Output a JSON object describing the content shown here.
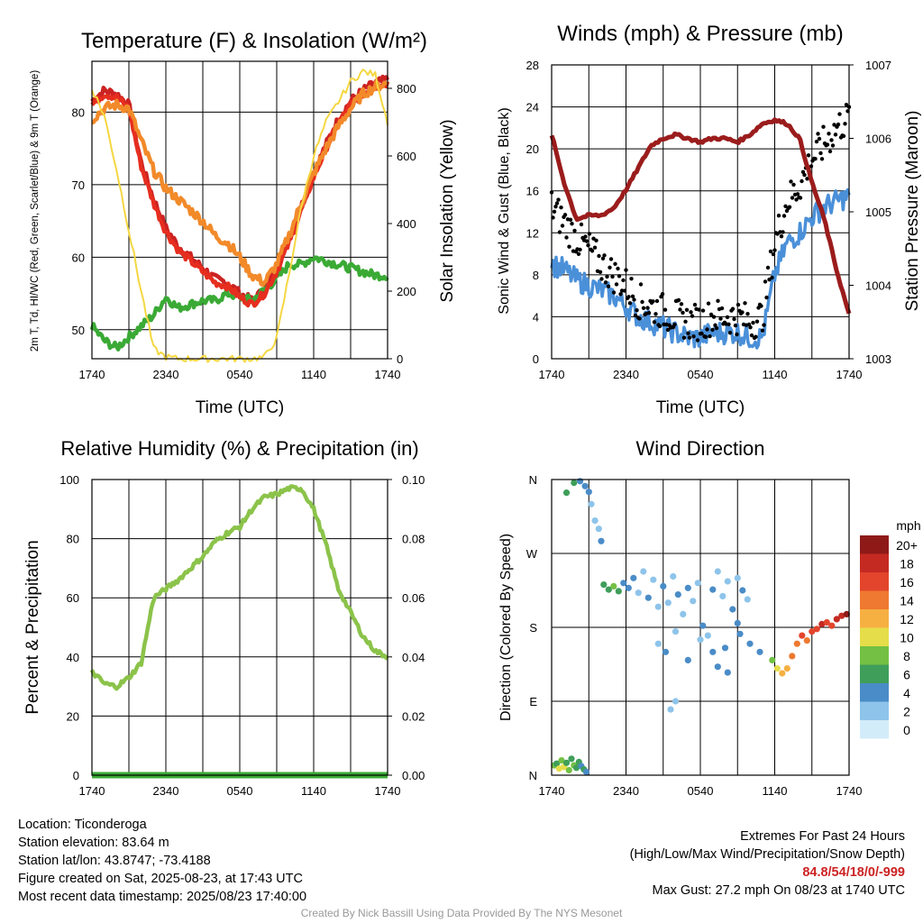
{
  "chart_data": [
    {
      "type": "line",
      "title": "Temperature (F) & Insolation (W/m²)",
      "xlabel": "Time (UTC)",
      "ylabel_left": "2m T, Td, HI/WC (Red, Green, Scarlet/Blue) & 9m T (Orange)",
      "ylabel_right": "Solar Insolation (Yellow)",
      "x_ticks": [
        "1740",
        "2340",
        "0540",
        "1140",
        "1740"
      ],
      "ylim": [
        46,
        87
      ],
      "y_ticks": [
        50,
        60,
        70,
        80
      ],
      "y2lim": [
        0,
        880
      ],
      "y2_ticks": [
        0,
        200,
        400,
        600,
        800
      ],
      "x_hours": [
        0,
        1,
        2,
        3,
        4,
        5,
        6,
        7,
        8,
        9,
        10,
        11,
        12,
        13,
        14,
        15,
        16,
        17,
        18,
        19,
        20,
        21,
        22,
        23,
        24
      ],
      "series": [
        {
          "name": "2m T",
          "color": "#cc2222",
          "values": [
            81.5,
            83.0,
            82.5,
            81.0,
            73.0,
            68.0,
            64.0,
            61.5,
            60.0,
            58.5,
            57.0,
            56.5,
            55.0,
            54.0,
            55.5,
            58.5,
            62.5,
            67.0,
            71.5,
            75.5,
            79.0,
            81.5,
            83.0,
            84.0,
            84.5
          ]
        },
        {
          "name": "2m Td",
          "color": "#3aaa35",
          "values": [
            50.5,
            48.5,
            47.5,
            49.0,
            50.5,
            52.0,
            54.5,
            53.0,
            53.5,
            54.0,
            54.0,
            55.0,
            54.5,
            54.0,
            55.5,
            57.0,
            59.0,
            59.0,
            60.0,
            59.5,
            59.0,
            58.5,
            58.0,
            57.5,
            57.5
          ]
        },
        {
          "name": "HI/WC",
          "color": "#e62e1f",
          "values": [
            81.0,
            82.5,
            82.0,
            80.5,
            72.5,
            67.5,
            63.5,
            61.0,
            59.5,
            58.0,
            56.5,
            56.0,
            54.5,
            53.5,
            55.0,
            58.0,
            62.0,
            66.5,
            71.0,
            75.0,
            78.5,
            81.0,
            82.5,
            83.5,
            84.0
          ]
        },
        {
          "name": "9m T",
          "color": "#f28a2a",
          "values": [
            79.0,
            80.5,
            81.0,
            80.5,
            76.0,
            72.0,
            69.5,
            68.0,
            66.5,
            65.0,
            63.0,
            62.0,
            60.0,
            57.5,
            56.5,
            59.0,
            63.0,
            67.5,
            71.5,
            75.0,
            78.0,
            80.5,
            82.5,
            83.5,
            84.0
          ]
        },
        {
          "name": "Solar Insolation",
          "axis": "right",
          "color": "#f5d742",
          "values": [
            800,
            720,
            560,
            380,
            200,
            30,
            5,
            0,
            0,
            0,
            0,
            0,
            0,
            0,
            5,
            60,
            250,
            450,
            600,
            700,
            760,
            820,
            850,
            840,
            700
          ]
        }
      ]
    },
    {
      "type": "line",
      "title": "Winds (mph) & Pressure (mb)",
      "xlabel": "Time (UTC)",
      "ylabel_left": "Sonic Wind & Gust (Blue, Black)",
      "ylabel_right": "Station Pressure (Maroon)",
      "x_ticks": [
        "1740",
        "2340",
        "0540",
        "1140",
        "1740"
      ],
      "ylim": [
        0,
        28
      ],
      "y_ticks": [
        0,
        4,
        8,
        12,
        16,
        20,
        24,
        28
      ],
      "y2lim": [
        1003,
        1007
      ],
      "y2_ticks": [
        1003,
        1004,
        1005,
        1006,
        1007
      ],
      "x_hours": [
        0,
        1,
        2,
        3,
        4,
        5,
        6,
        7,
        8,
        9,
        10,
        11,
        12,
        13,
        14,
        15,
        16,
        17,
        18,
        19,
        20,
        21,
        22,
        23,
        24
      ],
      "series": [
        {
          "name": "Sonic Wind",
          "color": "#4a90d9",
          "values": [
            9.0,
            8.5,
            7.5,
            7.0,
            6.5,
            6.0,
            5.0,
            4.0,
            3.5,
            3.0,
            2.5,
            2.0,
            2.0,
            2.5,
            2.5,
            2.5,
            2.0,
            2.0,
            8.0,
            11.0,
            12.0,
            13.5,
            14.5,
            15.0,
            15.5
          ]
        },
        {
          "name": "Gust",
          "color": "#000000",
          "markers": true,
          "values": [
            14.5,
            13.0,
            11.5,
            10.5,
            9.0,
            8.0,
            7.0,
            5.5,
            5.0,
            4.5,
            4.0,
            3.5,
            3.5,
            4.0,
            4.0,
            4.0,
            3.5,
            4.0,
            11.0,
            15.0,
            16.5,
            19.0,
            20.5,
            22.0,
            23.0
          ]
        },
        {
          "name": "Station Pressure",
          "axis": "right",
          "color": "#9b1c1c",
          "values": [
            1006.05,
            1005.4,
            1004.9,
            1004.95,
            1004.95,
            1005.05,
            1005.3,
            1005.6,
            1005.9,
            1006.0,
            1006.05,
            1006.0,
            1005.95,
            1006.0,
            1006.0,
            1005.95,
            1006.05,
            1006.2,
            1006.25,
            1006.2,
            1006.0,
            1005.4,
            1004.9,
            1004.2,
            1003.6
          ]
        }
      ]
    },
    {
      "type": "line",
      "title": "Relative Humidity (%) & Precipitation (in)",
      "ylabel_left": "Percent & Precipitation",
      "x_ticks": [
        "1740",
        "2340",
        "0540",
        "1140",
        "1740"
      ],
      "ylim": [
        0,
        100
      ],
      "y_ticks": [
        0,
        20,
        40,
        60,
        80,
        100
      ],
      "y2lim": [
        0,
        0.1
      ],
      "y2_ticks": [
        "0.00",
        "0.02",
        "0.04",
        "0.06",
        "0.08",
        "0.10"
      ],
      "x_hours": [
        0,
        1,
        2,
        3,
        4,
        5,
        6,
        7,
        8,
        9,
        10,
        11,
        12,
        13,
        14,
        15,
        16,
        17,
        18,
        19,
        20,
        21,
        22,
        23,
        24
      ],
      "series": [
        {
          "name": "Relative Humidity",
          "color": "#8bc34a",
          "values": [
            35,
            31,
            30,
            33,
            38,
            60,
            63,
            66,
            70,
            74,
            79,
            82,
            84,
            90,
            94,
            95,
            97,
            97,
            90,
            78,
            63,
            55,
            47,
            42,
            40
          ]
        },
        {
          "name": "Precipitation",
          "axis": "right",
          "color": "#3aaa35",
          "values": [
            0,
            0,
            0,
            0,
            0,
            0,
            0,
            0,
            0,
            0,
            0,
            0,
            0,
            0,
            0,
            0,
            0,
            0,
            0,
            0,
            0,
            0,
            0,
            0,
            0
          ]
        }
      ]
    },
    {
      "type": "scatter",
      "title": "Wind Direction",
      "ylabel": "Direction (Colored By Speed)",
      "x_ticks": [
        "1740",
        "2340",
        "0540",
        "1140",
        "1740"
      ],
      "y_ticks": [
        "N",
        "E",
        "S",
        "W",
        "N"
      ],
      "ylim": [
        0,
        360
      ],
      "colorbar_title": "mph",
      "colorbar_labels": [
        "0",
        "2",
        "4",
        "6",
        "8",
        "10",
        "12",
        "14",
        "16",
        "18",
        "20+"
      ],
      "colorbar_colors": [
        "#d3ecf9",
        "#8ec4ea",
        "#4a8cc7",
        "#3f9e5a",
        "#73c044",
        "#e5de4a",
        "#f6b042",
        "#ef7930",
        "#e2452c",
        "#c42a22",
        "#8e1a18"
      ],
      "points": [
        [
          0.2,
          12,
          8
        ],
        [
          0.4,
          14,
          6
        ],
        [
          0.6,
          8,
          10
        ],
        [
          0.8,
          18,
          7
        ],
        [
          1.0,
          10,
          9
        ],
        [
          1.2,
          15,
          5
        ],
        [
          1.4,
          6,
          8
        ],
        [
          1.6,
          20,
          6
        ],
        [
          1.8,
          12,
          7
        ],
        [
          2.0,
          9,
          5
        ],
        [
          2.2,
          16,
          6
        ],
        [
          2.4,
          11,
          4
        ],
        [
          2.6,
          7,
          5
        ],
        [
          2.8,
          4,
          4
        ],
        [
          1.2,
          344,
          6
        ],
        [
          1.8,
          356,
          5
        ],
        [
          2.3,
          358,
          3
        ],
        [
          2.7,
          352,
          4
        ],
        [
          3.0,
          345,
          3
        ],
        [
          3.2,
          330,
          2
        ],
        [
          3.5,
          310,
          2
        ],
        [
          3.8,
          300,
          2
        ],
        [
          4.0,
          285,
          3
        ],
        [
          4.2,
          232,
          5
        ],
        [
          4.6,
          226,
          6
        ],
        [
          5.0,
          230,
          7
        ],
        [
          5.4,
          224,
          5
        ],
        [
          5.8,
          234,
          4
        ],
        [
          6.2,
          228,
          3
        ],
        [
          6.6,
          240,
          3
        ],
        [
          7.0,
          222,
          2
        ],
        [
          7.4,
          248,
          2
        ],
        [
          7.8,
          216,
          3
        ],
        [
          8.2,
          238,
          1
        ],
        [
          8.6,
          205,
          2
        ],
        [
          9.0,
          230,
          3
        ],
        [
          9.4,
          210,
          2
        ],
        [
          9.8,
          242,
          1
        ],
        [
          10.2,
          220,
          3
        ],
        [
          10.6,
          196,
          2
        ],
        [
          11.0,
          228,
          4
        ],
        [
          11.4,
          212,
          2
        ],
        [
          11.8,
          234,
          2
        ],
        [
          12.2,
          182,
          3
        ],
        [
          12.6,
          170,
          2
        ],
        [
          13.0,
          226,
          3
        ],
        [
          13.4,
          248,
          1
        ],
        [
          13.8,
          218,
          2
        ],
        [
          14.2,
          236,
          2
        ],
        [
          14.6,
          202,
          3
        ],
        [
          15.0,
          240,
          2
        ],
        [
          15.4,
          225,
          3
        ],
        [
          15.8,
          214,
          1
        ],
        [
          8.6,
          160,
          2
        ],
        [
          9.2,
          150,
          3
        ],
        [
          10.0,
          175,
          2
        ],
        [
          11.0,
          140,
          4
        ],
        [
          12.0,
          165,
          2
        ],
        [
          13.0,
          150,
          3
        ],
        [
          14.0,
          155,
          4
        ],
        [
          15.0,
          185,
          3
        ],
        [
          16.0,
          160,
          3
        ],
        [
          9.6,
          80,
          1
        ],
        [
          10.0,
          90,
          1
        ],
        [
          13.4,
          132,
          3
        ],
        [
          14.2,
          125,
          3
        ],
        [
          15.2,
          172,
          3
        ],
        [
          16.8,
          150,
          4
        ],
        [
          17.8,
          140,
          8
        ],
        [
          18.2,
          130,
          10
        ],
        [
          18.6,
          124,
          11
        ],
        [
          19.0,
          130,
          12
        ],
        [
          19.4,
          145,
          13
        ],
        [
          19.8,
          160,
          14
        ],
        [
          20.2,
          170,
          15
        ],
        [
          20.6,
          164,
          14
        ],
        [
          21.0,
          175,
          16
        ],
        [
          21.4,
          178,
          15
        ],
        [
          21.8,
          184,
          17
        ],
        [
          22.2,
          186,
          16
        ],
        [
          22.6,
          182,
          16
        ],
        [
          23.0,
          190,
          18
        ],
        [
          23.4,
          194,
          18
        ],
        [
          23.8,
          196,
          19
        ]
      ]
    }
  ],
  "info": {
    "location": "Location: Ticonderoga",
    "elevation": "Station elevation: 83.64 m",
    "latlon": "Station lat/lon: 43.8747; -73.4188",
    "created": "Figure created on Sat, 2025-08-23, at 17:43 UTC",
    "recent": "Most recent data timestamp: 2025/08/23 17:40:00"
  },
  "extremes": {
    "title": "Extremes For Past 24 Hours",
    "subtitle": "(High/Low/Max Wind/Precipitation/Snow Depth)",
    "values": "84.8/54/18/0/-999",
    "max_gust": "Max Gust: 27.2 mph On 08/23 at 1740 UTC"
  },
  "credit": "Created By Nick Bassill Using Data Provided By The NYS Mesonet"
}
